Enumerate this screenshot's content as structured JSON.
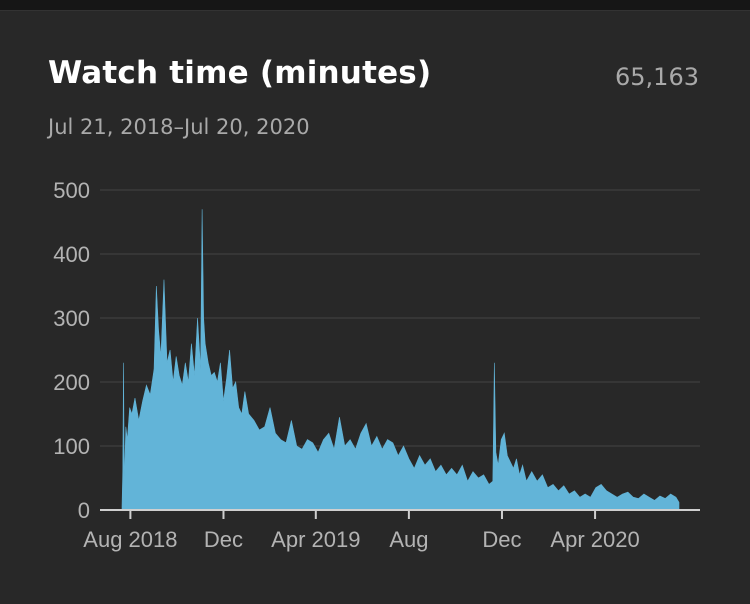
{
  "card": {
    "title": "Watch time (minutes)",
    "total": "65,163",
    "date_range": "Jul 21, 2018–Jul 20, 2020"
  },
  "colors": {
    "background": "#282828",
    "area_fill": "#62b4d8",
    "grid": "#3a3a3a",
    "baseline": "#cfcfcf",
    "text_primary": "#ffffff",
    "text_secondary": "#a9a9a9"
  },
  "chart_data": {
    "type": "area",
    "title": "Watch time (minutes)",
    "xlabel": "",
    "ylabel": "",
    "x_range": [
      "2018-07-21",
      "2020-07-20"
    ],
    "ylim": [
      0,
      500
    ],
    "y_ticks": [
      0,
      100,
      200,
      300,
      400,
      500
    ],
    "y_tick_labels": [
      "0",
      "100",
      "200",
      "300",
      "400",
      "500"
    ],
    "x_ticks": [
      {
        "date": "2018-08-01",
        "label": "Aug 2018"
      },
      {
        "date": "2018-12-01",
        "label": "Dec"
      },
      {
        "date": "2019-04-01",
        "label": "Apr 2019"
      },
      {
        "date": "2019-08-01",
        "label": "Aug"
      },
      {
        "date": "2019-12-01",
        "label": "Dec"
      },
      {
        "date": "2020-04-01",
        "label": "Apr 2020"
      }
    ],
    "grid": true,
    "series": [
      {
        "x": [
          "2018-07-21",
          "2018-07-22",
          "2018-07-23",
          "2018-07-24",
          "2018-07-26",
          "2018-07-28",
          "2018-07-31",
          "2018-08-03",
          "2018-08-07",
          "2018-08-12",
          "2018-08-17",
          "2018-08-22",
          "2018-08-27",
          "2018-09-01",
          "2018-09-04",
          "2018-09-07",
          "2018-09-10",
          "2018-09-14",
          "2018-09-18",
          "2018-09-22",
          "2018-09-26",
          "2018-09-30",
          "2018-10-04",
          "2018-10-08",
          "2018-10-12",
          "2018-10-16",
          "2018-10-20",
          "2018-10-24",
          "2018-10-28",
          "2018-11-01",
          "2018-11-03",
          "2018-11-05",
          "2018-11-07",
          "2018-11-11",
          "2018-11-15",
          "2018-11-19",
          "2018-11-23",
          "2018-11-27",
          "2018-12-01",
          "2018-12-05",
          "2018-12-09",
          "2018-12-13",
          "2018-12-17",
          "2018-12-21",
          "2018-12-25",
          "2018-12-29",
          "2019-01-03",
          "2019-01-10",
          "2019-01-17",
          "2019-01-24",
          "2019-01-31",
          "2019-02-07",
          "2019-02-14",
          "2019-02-21",
          "2019-02-28",
          "2019-03-07",
          "2019-03-14",
          "2019-03-21",
          "2019-03-28",
          "2019-04-04",
          "2019-04-11",
          "2019-04-18",
          "2019-04-25",
          "2019-05-02",
          "2019-05-09",
          "2019-05-16",
          "2019-05-23",
          "2019-05-30",
          "2019-06-06",
          "2019-06-13",
          "2019-06-20",
          "2019-06-27",
          "2019-07-04",
          "2019-07-11",
          "2019-07-18",
          "2019-07-25",
          "2019-08-01",
          "2019-08-08",
          "2019-08-15",
          "2019-08-22",
          "2019-08-29",
          "2019-09-05",
          "2019-09-12",
          "2019-09-19",
          "2019-09-26",
          "2019-10-03",
          "2019-10-10",
          "2019-10-17",
          "2019-10-24",
          "2019-10-31",
          "2019-11-07",
          "2019-11-14",
          "2019-11-19",
          "2019-11-21",
          "2019-11-23",
          "2019-11-26",
          "2019-11-30",
          "2019-12-04",
          "2019-12-08",
          "2019-12-12",
          "2019-12-16",
          "2019-12-20",
          "2019-12-24",
          "2019-12-28",
          "2020-01-02",
          "2020-01-09",
          "2020-01-16",
          "2020-01-23",
          "2020-01-30",
          "2020-02-06",
          "2020-02-13",
          "2020-02-20",
          "2020-02-27",
          "2020-03-05",
          "2020-03-12",
          "2020-03-19",
          "2020-03-26",
          "2020-04-02",
          "2020-04-09",
          "2020-04-16",
          "2020-04-23",
          "2020-04-30",
          "2020-05-07",
          "2020-05-14",
          "2020-05-21",
          "2020-05-28",
          "2020-06-04",
          "2020-06-11",
          "2020-06-18",
          "2020-06-25",
          "2020-07-02",
          "2020-07-09",
          "2020-07-16",
          "2020-07-20"
        ],
        "y": [
          5,
          60,
          230,
          40,
          130,
          110,
          160,
          150,
          175,
          140,
          170,
          195,
          180,
          220,
          350,
          280,
          240,
          360,
          230,
          250,
          200,
          240,
          210,
          195,
          230,
          200,
          260,
          210,
          300,
          220,
          470,
          300,
          260,
          230,
          210,
          215,
          200,
          230,
          170,
          205,
          250,
          190,
          200,
          160,
          150,
          185,
          150,
          140,
          125,
          130,
          160,
          120,
          110,
          105,
          140,
          100,
          95,
          110,
          105,
          90,
          110,
          120,
          95,
          145,
          100,
          110,
          95,
          120,
          135,
          100,
          115,
          95,
          110,
          105,
          85,
          100,
          80,
          65,
          85,
          70,
          80,
          60,
          70,
          55,
          65,
          55,
          70,
          45,
          60,
          50,
          55,
          40,
          45,
          230,
          90,
          70,
          110,
          120,
          85,
          75,
          65,
          80,
          55,
          70,
          45,
          60,
          45,
          55,
          35,
          40,
          30,
          38,
          25,
          30,
          20,
          25,
          20,
          35,
          40,
          30,
          25,
          20,
          25,
          28,
          20,
          18,
          25,
          20,
          15,
          22,
          18,
          25,
          20,
          12
        ]
      }
    ]
  }
}
